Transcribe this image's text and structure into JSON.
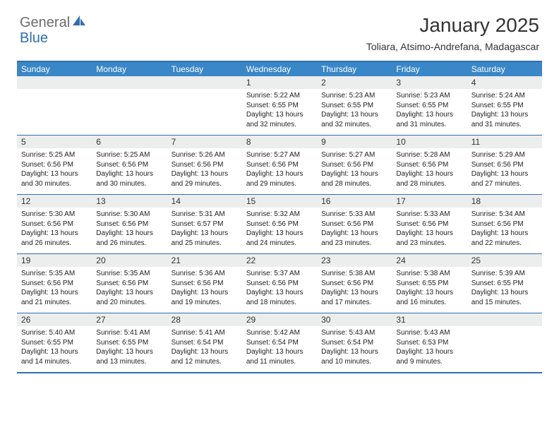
{
  "logo": {
    "general": "General",
    "blue": "Blue"
  },
  "title": "January 2025",
  "location": "Toliara, Atsimo-Andrefana, Madagascar",
  "colors": {
    "header_bg": "#3a87c7",
    "border": "#2f6fb0",
    "numrow_bg": "#eceded",
    "logo_gray": "#6b6b6b",
    "logo_blue": "#2f6fb0"
  },
  "day_names": [
    "Sunday",
    "Monday",
    "Tuesday",
    "Wednesday",
    "Thursday",
    "Friday",
    "Saturday"
  ],
  "weeks": [
    [
      null,
      null,
      null,
      {
        "n": "1",
        "sr": "5:22 AM",
        "ss": "6:55 PM",
        "dl1": "13 hours",
        "dl2": "and 32 minutes."
      },
      {
        "n": "2",
        "sr": "5:23 AM",
        "ss": "6:55 PM",
        "dl1": "13 hours",
        "dl2": "and 32 minutes."
      },
      {
        "n": "3",
        "sr": "5:23 AM",
        "ss": "6:55 PM",
        "dl1": "13 hours",
        "dl2": "and 31 minutes."
      },
      {
        "n": "4",
        "sr": "5:24 AM",
        "ss": "6:55 PM",
        "dl1": "13 hours",
        "dl2": "and 31 minutes."
      }
    ],
    [
      {
        "n": "5",
        "sr": "5:25 AM",
        "ss": "6:56 PM",
        "dl1": "13 hours",
        "dl2": "and 30 minutes."
      },
      {
        "n": "6",
        "sr": "5:25 AM",
        "ss": "6:56 PM",
        "dl1": "13 hours",
        "dl2": "and 30 minutes."
      },
      {
        "n": "7",
        "sr": "5:26 AM",
        "ss": "6:56 PM",
        "dl1": "13 hours",
        "dl2": "and 29 minutes."
      },
      {
        "n": "8",
        "sr": "5:27 AM",
        "ss": "6:56 PM",
        "dl1": "13 hours",
        "dl2": "and 29 minutes."
      },
      {
        "n": "9",
        "sr": "5:27 AM",
        "ss": "6:56 PM",
        "dl1": "13 hours",
        "dl2": "and 28 minutes."
      },
      {
        "n": "10",
        "sr": "5:28 AM",
        "ss": "6:56 PM",
        "dl1": "13 hours",
        "dl2": "and 28 minutes."
      },
      {
        "n": "11",
        "sr": "5:29 AM",
        "ss": "6:56 PM",
        "dl1": "13 hours",
        "dl2": "and 27 minutes."
      }
    ],
    [
      {
        "n": "12",
        "sr": "5:30 AM",
        "ss": "6:56 PM",
        "dl1": "13 hours",
        "dl2": "and 26 minutes."
      },
      {
        "n": "13",
        "sr": "5:30 AM",
        "ss": "6:56 PM",
        "dl1": "13 hours",
        "dl2": "and 26 minutes."
      },
      {
        "n": "14",
        "sr": "5:31 AM",
        "ss": "6:57 PM",
        "dl1": "13 hours",
        "dl2": "and 25 minutes."
      },
      {
        "n": "15",
        "sr": "5:32 AM",
        "ss": "6:56 PM",
        "dl1": "13 hours",
        "dl2": "and 24 minutes."
      },
      {
        "n": "16",
        "sr": "5:33 AM",
        "ss": "6:56 PM",
        "dl1": "13 hours",
        "dl2": "and 23 minutes."
      },
      {
        "n": "17",
        "sr": "5:33 AM",
        "ss": "6:56 PM",
        "dl1": "13 hours",
        "dl2": "and 23 minutes."
      },
      {
        "n": "18",
        "sr": "5:34 AM",
        "ss": "6:56 PM",
        "dl1": "13 hours",
        "dl2": "and 22 minutes."
      }
    ],
    [
      {
        "n": "19",
        "sr": "5:35 AM",
        "ss": "6:56 PM",
        "dl1": "13 hours",
        "dl2": "and 21 minutes."
      },
      {
        "n": "20",
        "sr": "5:35 AM",
        "ss": "6:56 PM",
        "dl1": "13 hours",
        "dl2": "and 20 minutes."
      },
      {
        "n": "21",
        "sr": "5:36 AM",
        "ss": "6:56 PM",
        "dl1": "13 hours",
        "dl2": "and 19 minutes."
      },
      {
        "n": "22",
        "sr": "5:37 AM",
        "ss": "6:56 PM",
        "dl1": "13 hours",
        "dl2": "and 18 minutes."
      },
      {
        "n": "23",
        "sr": "5:38 AM",
        "ss": "6:56 PM",
        "dl1": "13 hours",
        "dl2": "and 17 minutes."
      },
      {
        "n": "24",
        "sr": "5:38 AM",
        "ss": "6:55 PM",
        "dl1": "13 hours",
        "dl2": "and 16 minutes."
      },
      {
        "n": "25",
        "sr": "5:39 AM",
        "ss": "6:55 PM",
        "dl1": "13 hours",
        "dl2": "and 15 minutes."
      }
    ],
    [
      {
        "n": "26",
        "sr": "5:40 AM",
        "ss": "6:55 PM",
        "dl1": "13 hours",
        "dl2": "and 14 minutes."
      },
      {
        "n": "27",
        "sr": "5:41 AM",
        "ss": "6:55 PM",
        "dl1": "13 hours",
        "dl2": "and 13 minutes."
      },
      {
        "n": "28",
        "sr": "5:41 AM",
        "ss": "6:54 PM",
        "dl1": "13 hours",
        "dl2": "and 12 minutes."
      },
      {
        "n": "29",
        "sr": "5:42 AM",
        "ss": "6:54 PM",
        "dl1": "13 hours",
        "dl2": "and 11 minutes."
      },
      {
        "n": "30",
        "sr": "5:43 AM",
        "ss": "6:54 PM",
        "dl1": "13 hours",
        "dl2": "and 10 minutes."
      },
      {
        "n": "31",
        "sr": "5:43 AM",
        "ss": "6:53 PM",
        "dl1": "13 hours",
        "dl2": "and 9 minutes."
      },
      null
    ]
  ],
  "labels": {
    "sunrise": "Sunrise: ",
    "sunset": "Sunset: ",
    "daylight": "Daylight: "
  }
}
